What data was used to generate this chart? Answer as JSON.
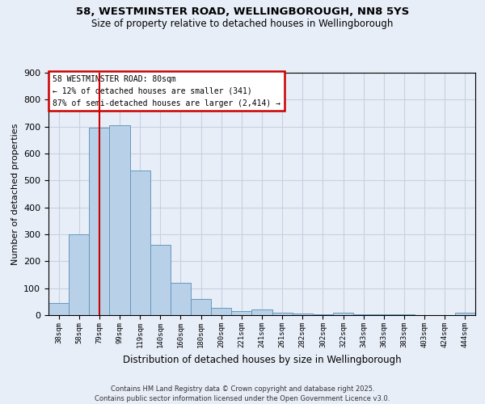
{
  "title_line1": "58, WESTMINSTER ROAD, WELLINGBOROUGH, NN8 5YS",
  "title_line2": "Size of property relative to detached houses in Wellingborough",
  "xlabel": "Distribution of detached houses by size in Wellingborough",
  "ylabel": "Number of detached properties",
  "footer": "Contains HM Land Registry data © Crown copyright and database right 2025.\nContains public sector information licensed under the Open Government Licence v3.0.",
  "categories": [
    "38sqm",
    "58sqm",
    "79sqm",
    "99sqm",
    "119sqm",
    "140sqm",
    "160sqm",
    "180sqm",
    "200sqm",
    "221sqm",
    "241sqm",
    "261sqm",
    "282sqm",
    "302sqm",
    "322sqm",
    "343sqm",
    "363sqm",
    "383sqm",
    "403sqm",
    "424sqm",
    "444sqm"
  ],
  "values": [
    45,
    300,
    695,
    705,
    537,
    260,
    120,
    60,
    28,
    15,
    20,
    8,
    5,
    2,
    8,
    2,
    2,
    2,
    1,
    1,
    8
  ],
  "bar_color": "#b8d0e8",
  "bar_edge_color": "#6699bb",
  "highlight_index": 2,
  "highlight_line_color": "#cc0000",
  "background_color": "#e8eef8",
  "grid_color": "#c8d0e0",
  "annotation_text": "58 WESTMINSTER ROAD: 80sqm\n← 12% of detached houses are smaller (341)\n87% of semi-detached houses are larger (2,414) →",
  "annotation_box_color": "#ffffff",
  "annotation_box_edge": "#cc0000",
  "ylim": [
    0,
    900
  ],
  "yticks": [
    0,
    100,
    200,
    300,
    400,
    500,
    600,
    700,
    800,
    900
  ]
}
